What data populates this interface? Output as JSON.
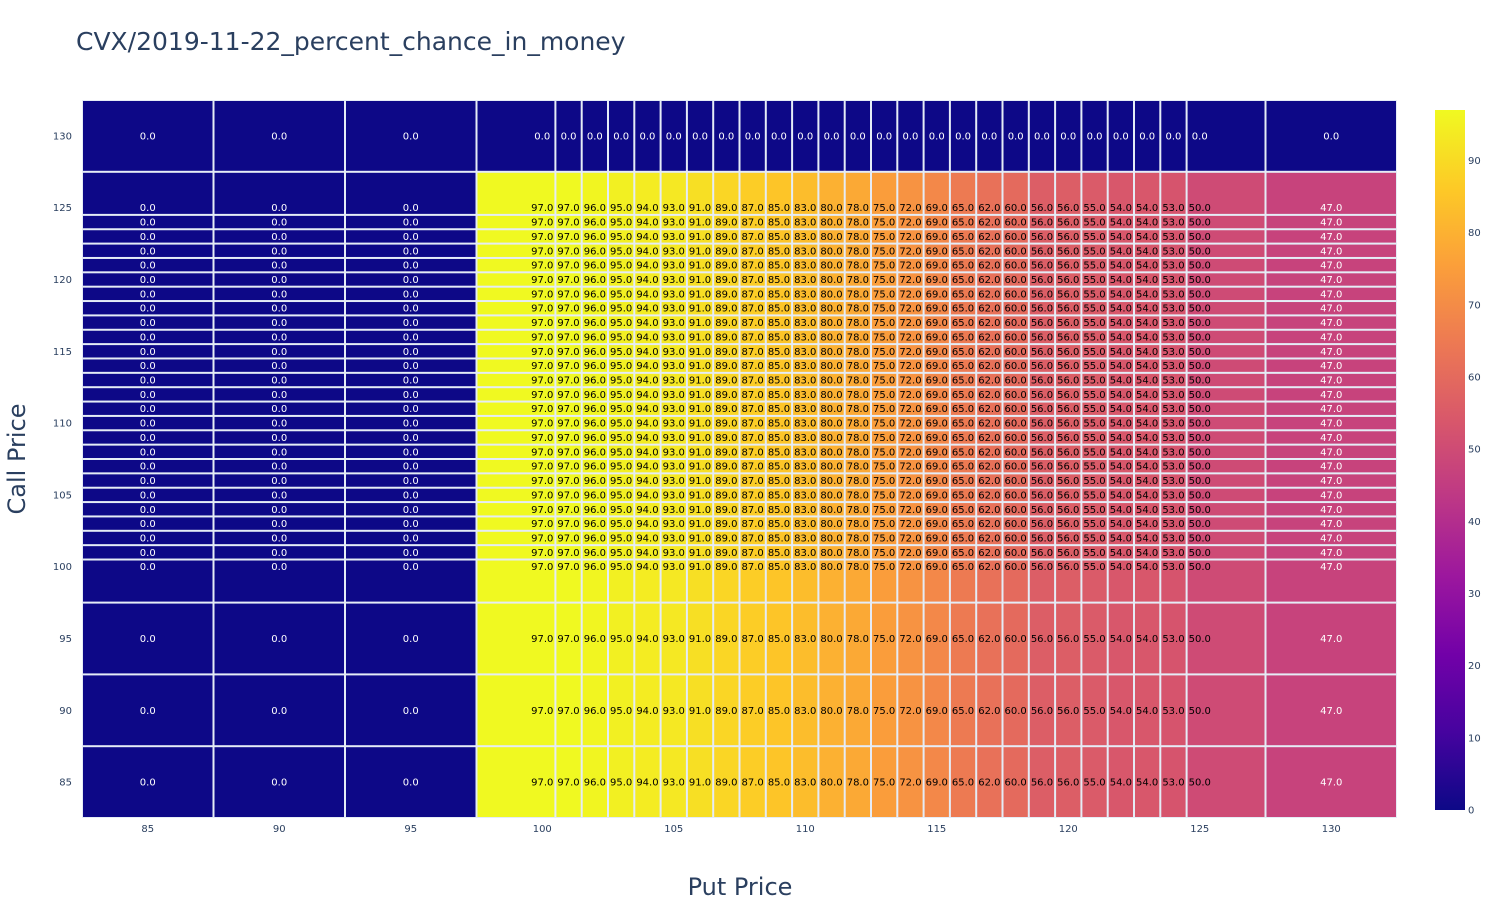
{
  "chart_data": {
    "type": "heatmap",
    "title": "CVX/2019-11-22_percent_chance_in_money",
    "xlabel": "Put Price",
    "ylabel": "Call Price",
    "x": [
      85,
      90,
      95,
      100,
      101,
      102,
      103,
      104,
      105,
      106,
      107,
      108,
      109,
      110,
      111,
      112,
      113,
      114,
      115,
      116,
      117,
      118,
      119,
      120,
      121,
      122,
      123,
      124,
      125,
      130
    ],
    "y": [
      85,
      90,
      95,
      100,
      101,
      102,
      103,
      104,
      105,
      106,
      107,
      108,
      109,
      110,
      111,
      112,
      113,
      114,
      115,
      116,
      117,
      118,
      119,
      120,
      121,
      122,
      123,
      124,
      125,
      130
    ],
    "column_values_active_rows": [
      0.0,
      0.0,
      0.0,
      97.0,
      97.0,
      96.0,
      95.0,
      94.0,
      93.0,
      91.0,
      89.0,
      87.0,
      85.0,
      83.0,
      80.0,
      78.0,
      75.0,
      72.0,
      69.0,
      65.0,
      62.0,
      60.0,
      56.0,
      56.0,
      55.0,
      54.0,
      54.0,
      53.0,
      50.0,
      47.0
    ],
    "row_130_value": 0.0,
    "x_ticks": [
      85,
      90,
      95,
      100,
      105,
      110,
      115,
      120,
      125,
      130
    ],
    "y_ticks": [
      85,
      90,
      95,
      100,
      105,
      110,
      115,
      120,
      125,
      130
    ],
    "colorbar": {
      "colorscale": "plasma",
      "range": [
        0,
        97
      ],
      "ticks": [
        0,
        10,
        20,
        30,
        40,
        50,
        60,
        70,
        80,
        90
      ]
    },
    "xlim": [
      82.5,
      132.5
    ],
    "ylim": [
      82.5,
      132.5
    ]
  },
  "colors": {
    "gap": "#e5ecf6",
    "text_dark": "#2a3f5f"
  }
}
